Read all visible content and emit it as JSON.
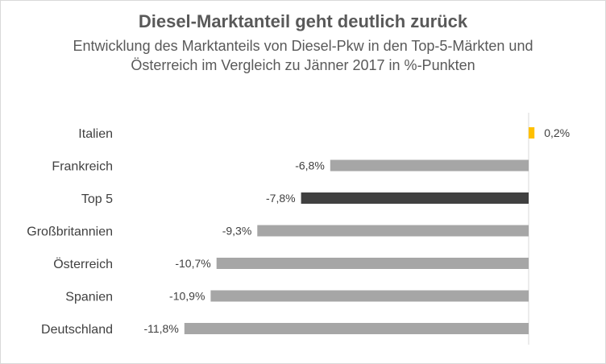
{
  "chart_data": {
    "type": "bar",
    "orientation": "horizontal",
    "title": "Diesel-Marktanteil geht deutlich zurück",
    "subtitle": "Entwicklung des Marktanteils von Diesel-Pkw in den Top-5-Märkten und Österreich im Vergleich zu Jänner 2017 in %-Punkten",
    "categories": [
      "Italien",
      "Frankreich",
      "Top 5",
      "Großbritannien",
      "Österreich",
      "Spanien",
      "Deutschland"
    ],
    "values": [
      0.2,
      -6.8,
      -7.8,
      -9.3,
      -10.7,
      -10.9,
      -11.8
    ],
    "value_labels": [
      "0,2%",
      "-6,8%",
      "-7,8%",
      "-9,3%",
      "-10,7%",
      "-10,9%",
      "-11,8%"
    ],
    "colors": [
      "#ffc000",
      "#a6a6a6",
      "#404040",
      "#a6a6a6",
      "#a6a6a6",
      "#a6a6a6",
      "#a6a6a6"
    ],
    "xlim": [
      -11.8,
      0.2
    ],
    "xlabel": "",
    "ylabel": ""
  }
}
